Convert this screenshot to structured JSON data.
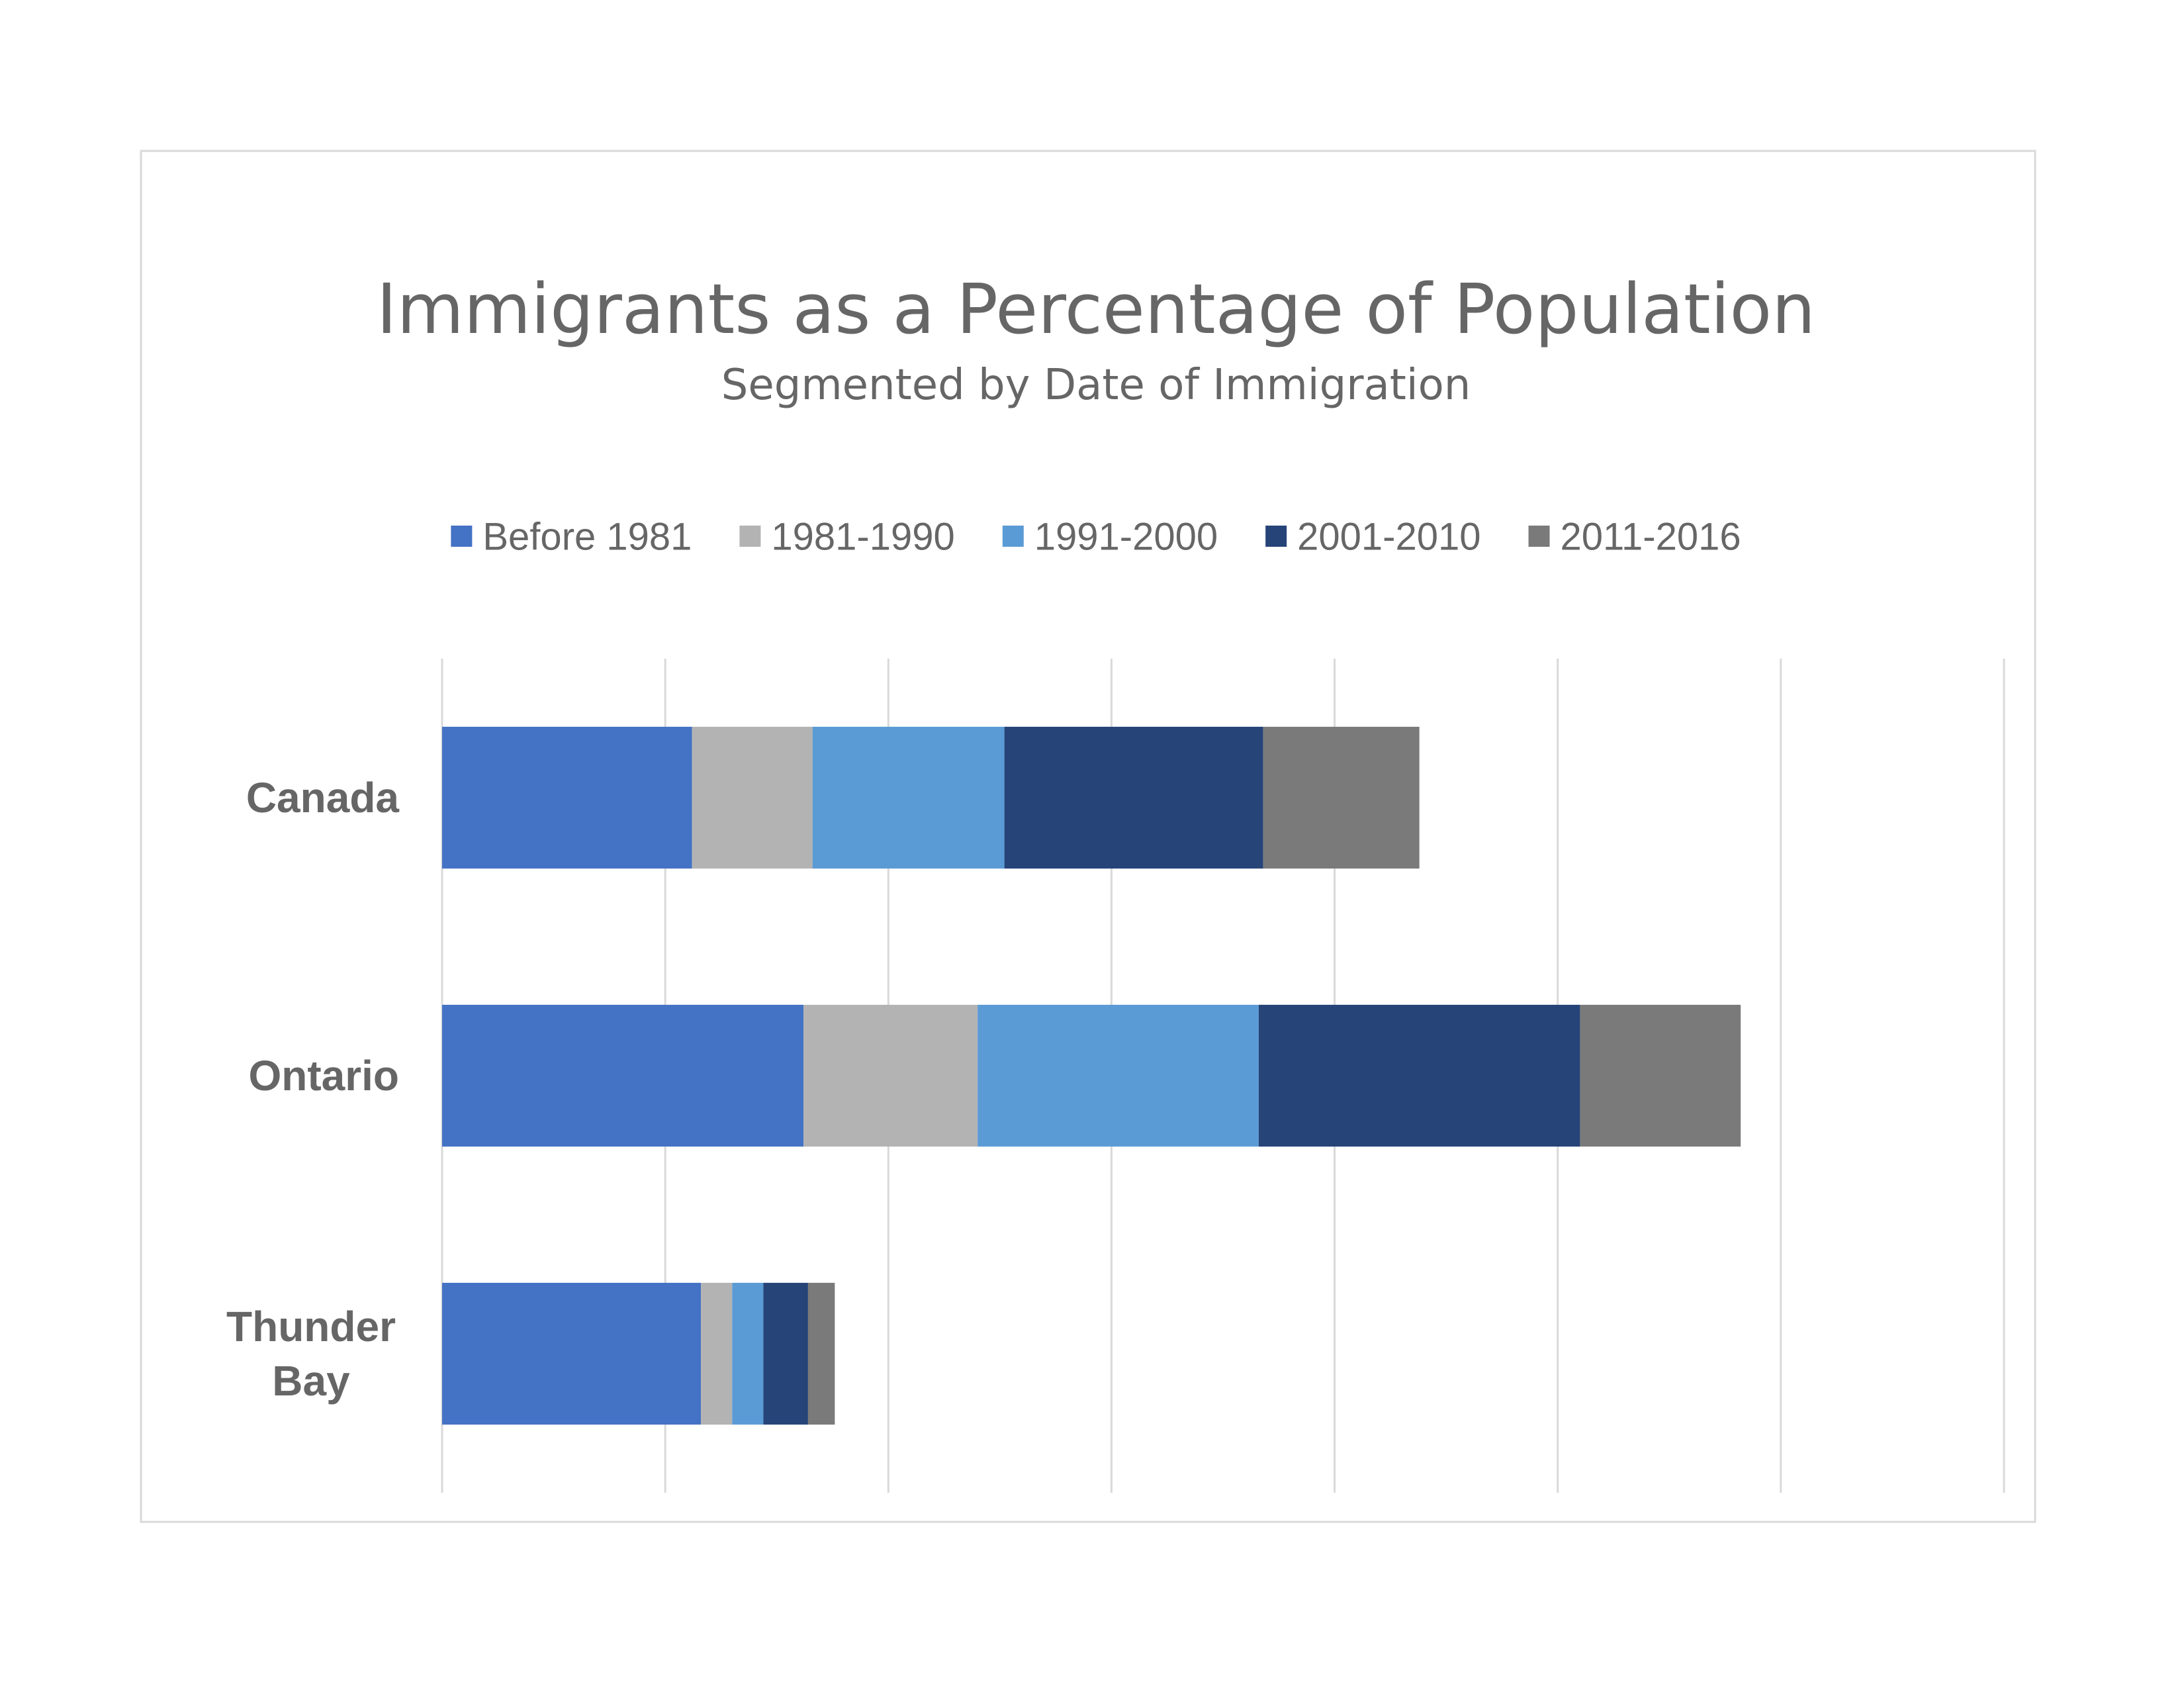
{
  "chart_data": {
    "type": "bar",
    "orientation": "horizontal",
    "stacked": true,
    "title": "Immigrants as a Percentage of Population",
    "subtitle": "Segmented by Date of Immigration",
    "categories": [
      "Canada",
      "Ontario",
      "Thunder Bay"
    ],
    "series": [
      {
        "name": "Before 1981",
        "color": "#4472C4",
        "values": [
          5.6,
          8.1,
          5.8
        ]
      },
      {
        "name": "1981-1990",
        "color": "#B3B3B3",
        "values": [
          2.7,
          3.9,
          0.7
        ]
      },
      {
        "name": "1991-2000",
        "color": "#5B9BD5",
        "values": [
          4.3,
          6.3,
          0.7
        ]
      },
      {
        "name": "2001-2010",
        "color": "#264478",
        "values": [
          5.8,
          7.2,
          1.0
        ]
      },
      {
        "name": "2011-2016",
        "color": "#7A7A7A",
        "values": [
          3.5,
          3.6,
          0.6
        ]
      }
    ],
    "xlim": [
      0,
      35
    ],
    "xticks": [
      0,
      5,
      10,
      15,
      20,
      25,
      30,
      35
    ],
    "tick_labels_shown": false,
    "grid": true,
    "legend": "top"
  }
}
